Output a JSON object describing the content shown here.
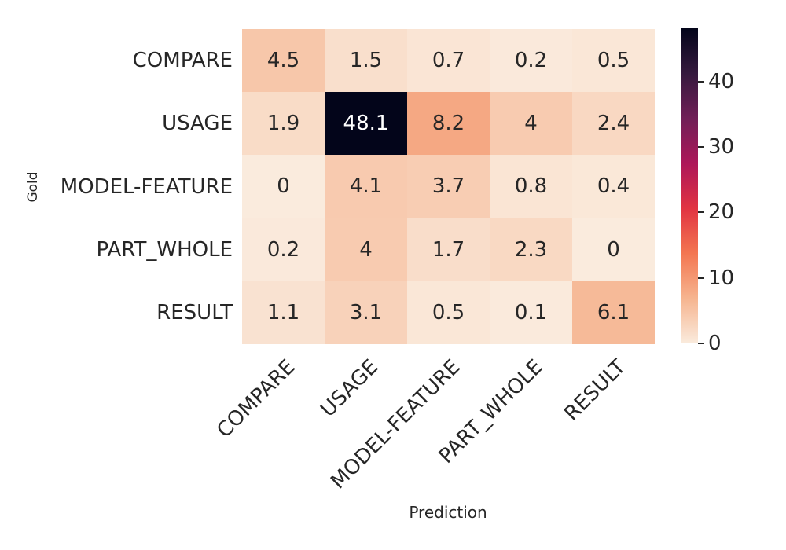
{
  "figure": {
    "background": "#ffffff",
    "text_color": "#262626",
    "annot_light_color": "#ffffff"
  },
  "chart_data": {
    "type": "heatmap",
    "title": "",
    "xlabel": "Prediction",
    "ylabel": "Gold",
    "row_labels": [
      "COMPARE",
      "USAGE",
      "MODEL-FEATURE",
      "PART_WHOLE",
      "RESULT"
    ],
    "col_labels": [
      "COMPARE",
      "USAGE",
      "MODEL-FEATURE",
      "PART_WHOLE",
      "RESULT"
    ],
    "values": [
      [
        4.5,
        1.5,
        0.7,
        0.2,
        0.5
      ],
      [
        1.9,
        48.1,
        8.2,
        4,
        2.4
      ],
      [
        0,
        4.1,
        3.7,
        0.8,
        0.4
      ],
      [
        0.2,
        4,
        1.7,
        2.3,
        0
      ],
      [
        1.1,
        3.1,
        0.5,
        0.1,
        6.1
      ]
    ],
    "vmin": 0,
    "vmax": 48.1,
    "colorbar": {
      "ticks": [
        0,
        10,
        20,
        30,
        40
      ],
      "position": "right"
    },
    "colormap": {
      "name": "rocket_r",
      "stops": [
        {
          "p": 0.0,
          "c": "#FAEBDD"
        },
        {
          "p": 0.143,
          "c": "#F6B48F"
        },
        {
          "p": 0.286,
          "c": "#F37651"
        },
        {
          "p": 0.429,
          "c": "#E13342"
        },
        {
          "p": 0.571,
          "c": "#AD1759"
        },
        {
          "p": 0.714,
          "c": "#701F57"
        },
        {
          "p": 0.857,
          "c": "#35193E"
        },
        {
          "p": 1.0,
          "c": "#03051A"
        }
      ]
    },
    "grid": false,
    "legend": false
  }
}
